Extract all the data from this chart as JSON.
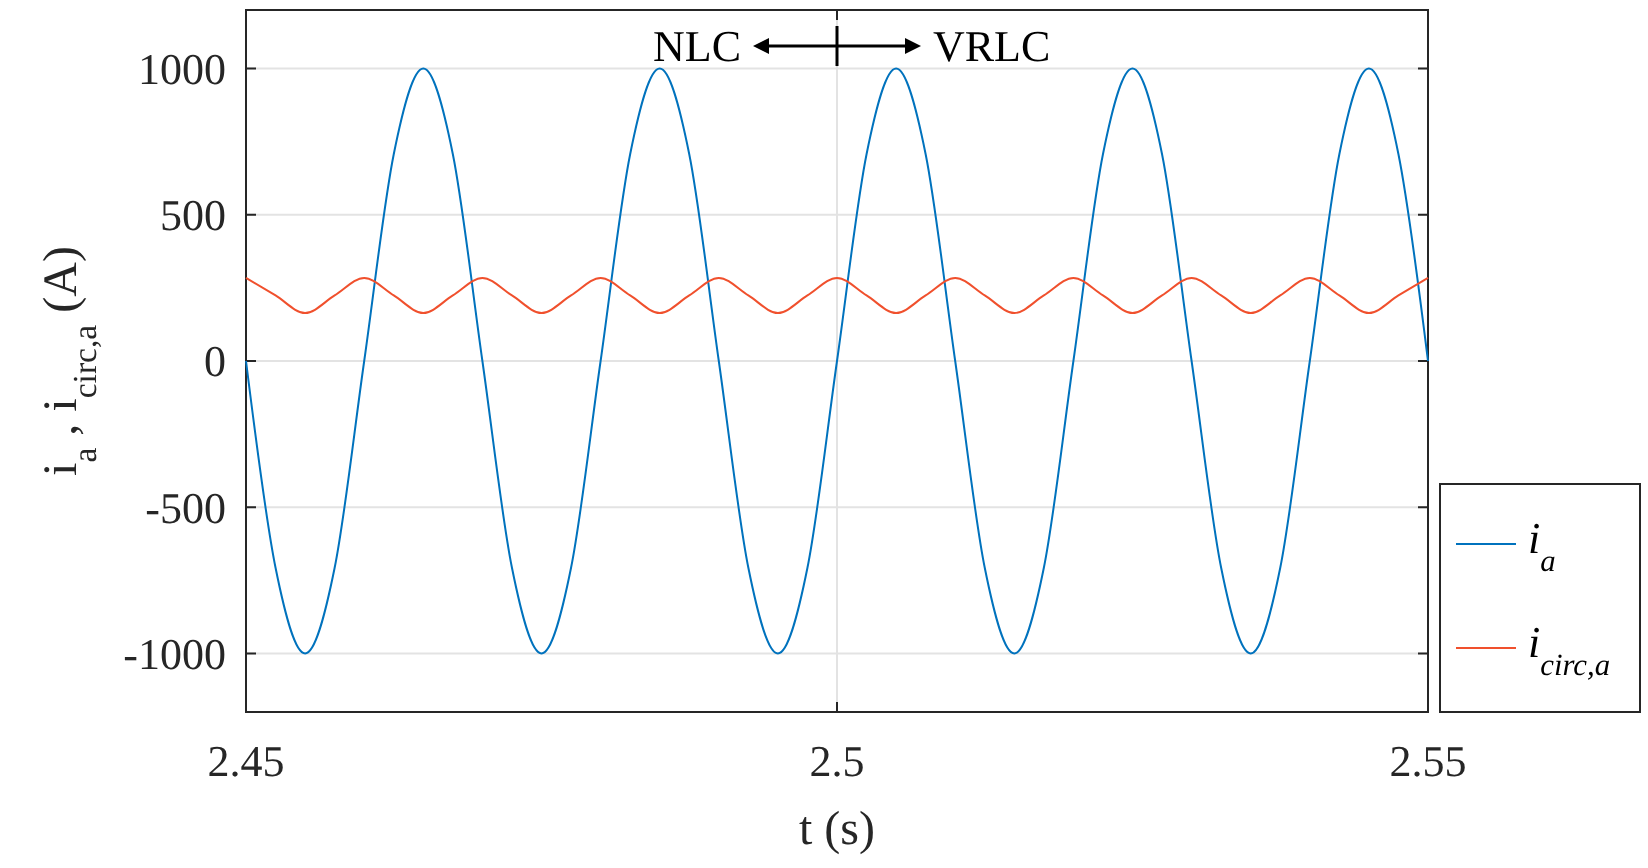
{
  "chart_data": {
    "type": "line",
    "xlabel": "t (s)",
    "ylabel": "i$_{a}$ , i$_{circ,a}$ (A)",
    "x": [
      2.45,
      2.4525,
      2.455,
      2.4575,
      2.46,
      2.4625,
      2.465,
      2.4675,
      2.47,
      2.4725,
      2.475,
      2.4775,
      2.48,
      2.4825,
      2.485,
      2.4875,
      2.49,
      2.4925,
      2.495,
      2.4975,
      2.5,
      2.5025,
      2.505,
      2.5075,
      2.51,
      2.5125,
      2.515,
      2.5175,
      2.52,
      2.5225,
      2.525,
      2.5275,
      2.53,
      2.5325,
      2.535,
      2.5375,
      2.54,
      2.5425,
      2.545,
      2.5475,
      2.55
    ],
    "series": [
      {
        "name": "i$_{a}$",
        "color": "#0072bd",
        "values": [
          0,
          -707,
          -1000,
          -707,
          0,
          707,
          1000,
          707,
          0,
          -707,
          -1000,
          -707,
          0,
          707,
          1000,
          707,
          0,
          -707,
          -1000,
          -707,
          0,
          707,
          1000,
          707,
          0,
          -707,
          -1000,
          -707,
          0,
          707,
          1000,
          707,
          0,
          -707,
          -1000,
          -707,
          0,
          707,
          1000,
          707,
          0
        ]
      },
      {
        "name": "i$_{circ,a}$",
        "color": "#f0502d",
        "values": [
          284,
          224,
          164,
          224,
          284,
          224,
          164,
          224,
          284,
          224,
          164,
          224,
          284,
          224,
          164,
          224,
          284,
          224,
          164,
          224,
          284,
          224,
          164,
          224,
          284,
          224,
          164,
          224,
          284,
          224,
          164,
          224,
          284,
          224,
          164,
          224,
          284,
          224,
          164,
          224,
          284
        ]
      }
    ],
    "xlim": [
      2.45,
      2.55
    ],
    "xticks": [
      2.45,
      2.5,
      2.55
    ],
    "ylim": [
      -1200,
      1200
    ],
    "yticks": [
      -1000,
      -500,
      0,
      500,
      1000
    ],
    "grid": true,
    "legend": "right",
    "annotations": [
      "NLC",
      "VRLC"
    ]
  }
}
